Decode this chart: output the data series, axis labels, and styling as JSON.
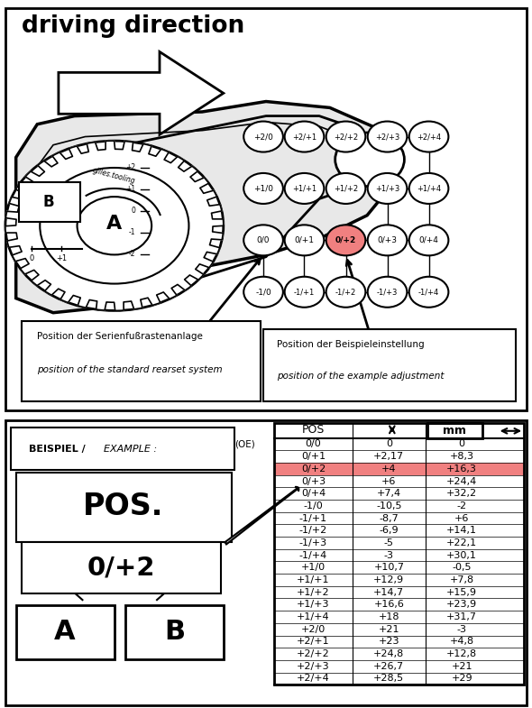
{
  "title": "driving direction",
  "bg_color": "#ffffff",
  "border_color": "#000000",
  "table_data": [
    [
      "0/0",
      "0",
      "0"
    ],
    [
      "0/+1",
      "+2,17",
      "+8,3"
    ],
    [
      "0/+2",
      "+4",
      "+16,3"
    ],
    [
      "0/+3",
      "+6",
      "+24,4"
    ],
    [
      "0/+4",
      "+7,4",
      "+32,2"
    ],
    [
      "-1/0",
      "-10,5",
      "-2"
    ],
    [
      "-1/+1",
      "-8,7",
      "+6"
    ],
    [
      "-1/+2",
      "-6,9",
      "+14,1"
    ],
    [
      "-1/+3",
      "-5",
      "+22,1"
    ],
    [
      "-1/+4",
      "-3",
      "+30,1"
    ],
    [
      "+1/0",
      "+10,7",
      "-0,5"
    ],
    [
      "+1/+1",
      "+12,9",
      "+7,8"
    ],
    [
      "+1/+2",
      "+14,7",
      "+15,9"
    ],
    [
      "+1/+3",
      "+16,6",
      "+23,9"
    ],
    [
      "+1/+4",
      "+18",
      "+31,7"
    ],
    [
      "+2/0",
      "+21",
      "-3"
    ],
    [
      "+2/+1",
      "+23",
      "+4,8"
    ],
    [
      "+2/+2",
      "+24,8",
      "+12,8"
    ],
    [
      "+2/+3",
      "+26,7",
      "+21"
    ],
    [
      "+2/+4",
      "+28,5",
      "+29"
    ]
  ],
  "highlight_row": 2,
  "highlight_color": "#f08080",
  "label_pos": "Position der Serienfußrastenanlage",
  "label_pos_italic": "position of the standard rearset system",
  "label_example": "Position der Beispieleinstellung",
  "label_example_italic": "position of the example adjustment",
  "highlight_node": "0/+2",
  "node_highlight_color": "#f08080"
}
